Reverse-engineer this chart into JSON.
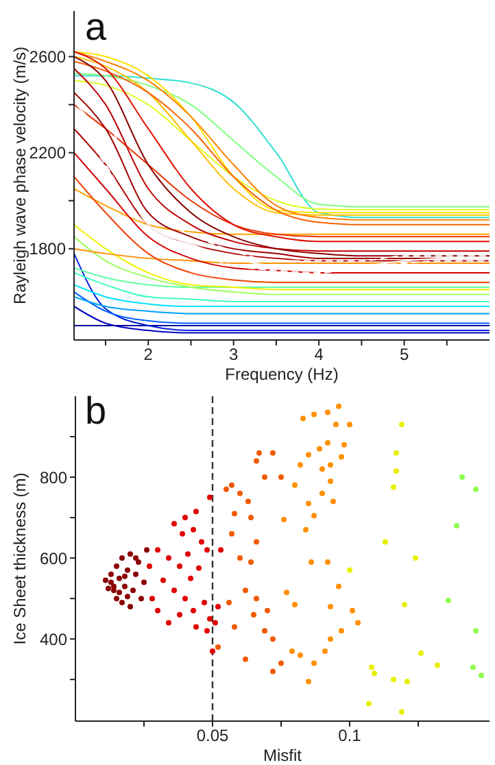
{
  "chart_data": [
    {
      "type": "line",
      "xlabel": "Frequency (Hz)",
      "ylabel": "Rayleigh wave phase velocity (m/s)",
      "annotations": [
        "a"
      ],
      "marker": "none",
      "xlim": [
        1.13,
        6
      ],
      "ylim": [
        1420,
        2790
      ],
      "xticks": [
        {
          "value": 1.5,
          "label": null
        },
        2,
        {
          "value": 2.5,
          "label": null
        },
        3,
        {
          "value": 3.5,
          "label": null
        },
        4,
        {
          "value": 4.5,
          "label": null
        },
        5,
        {
          "value": 5.5,
          "label": null
        }
      ],
      "yticks": [
        1800,
        {
          "value": 2000,
          "label": null
        },
        2200,
        {
          "value": 2400,
          "label": null
        },
        2600
      ],
      "x": [
        1.13,
        1.5,
        2,
        2.5,
        3,
        3.5,
        4,
        4.5,
        5,
        5.5,
        6
      ],
      "series": [
        {
          "color": "#0000a0",
          "values": [
            1480,
            1480,
            1480,
            1480,
            1480,
            1480,
            1480,
            1480,
            1480,
            1480,
            1480
          ]
        },
        {
          "color": "#0000c0",
          "values": [
            1560,
            1490,
            1460,
            1450,
            1450,
            1450,
            1450,
            1450,
            1450,
            1450,
            1450
          ]
        },
        {
          "color": "#0020e0",
          "values": [
            1780,
            1550,
            1480,
            1460,
            1460,
            1460,
            1460,
            1460,
            1460,
            1460,
            1460
          ]
        },
        {
          "color": "#0060ff",
          "values": [
            1620,
            1540,
            1500,
            1490,
            1490,
            1490,
            1490,
            1490,
            1490,
            1490,
            1490
          ]
        },
        {
          "color": "#00a0ff",
          "values": [
            1600,
            1560,
            1540,
            1530,
            1530,
            1530,
            1530,
            1530,
            1530,
            1530,
            1530
          ]
        },
        {
          "color": "#00e0ff",
          "values": [
            1650,
            1600,
            1570,
            1560,
            1560,
            1560,
            1560,
            1560,
            1560,
            1560,
            1560
          ]
        },
        {
          "color": "#40ffc0",
          "values": [
            1700,
            1650,
            1600,
            1590,
            1580,
            1580,
            1580,
            1580,
            1580,
            1580,
            1580
          ]
        },
        {
          "color": "#60ffa0",
          "values": [
            1720,
            1680,
            1650,
            1640,
            1640,
            1640,
            1640,
            1640,
            1640,
            1640,
            1640
          ]
        },
        {
          "color": "#a0ff60",
          "values": [
            1850,
            1750,
            1680,
            1640,
            1620,
            1610,
            1610,
            1610,
            1610,
            1610,
            1610
          ]
        },
        {
          "color": "#f0f000",
          "values": [
            1900,
            1800,
            1700,
            1650,
            1640,
            1630,
            1630,
            1630,
            1630,
            1630,
            1630
          ]
        },
        {
          "color": "#30e0d0",
          "values": [
            2520,
            2520,
            2510,
            2490,
            2410,
            2200,
            1950,
            1930,
            1930,
            1930,
            1930
          ]
        },
        {
          "color": "#80ff80",
          "values": [
            2530,
            2520,
            2480,
            2400,
            2250,
            2100,
            1985,
            1975,
            1975,
            1975,
            1975
          ]
        },
        {
          "color": "#e0ff20",
          "values": [
            2500,
            2480,
            2400,
            2250,
            2100,
            2000,
            1965,
            1962,
            1962,
            1962,
            1962
          ]
        },
        {
          "color": "#ffe000",
          "values": [
            2620,
            2600,
            2520,
            2350,
            2100,
            1960,
            1950,
            1950,
            1950,
            1950,
            1950
          ]
        },
        {
          "color": "#ffc000",
          "values": [
            2600,
            2560,
            2450,
            2250,
            2050,
            1950,
            1940,
            1940,
            1940,
            1940,
            1940
          ]
        },
        {
          "color": "#ffa000",
          "values": [
            2050,
            1980,
            1900,
            1870,
            1860,
            1860,
            1860,
            1860,
            1860,
            1860,
            1860
          ]
        },
        {
          "color": "#ff9000",
          "values": [
            1800,
            1780,
            1760,
            1750,
            1740,
            1740,
            1740,
            1740,
            1740,
            1740,
            1740
          ]
        },
        {
          "color": "#ff8000",
          "values": [
            2620,
            2580,
            2500,
            2350,
            2150,
            1980,
            1930,
            1920,
            1920,
            1920,
            1920
          ]
        },
        {
          "color": "#f86000",
          "values": [
            2580,
            2540,
            2450,
            2300,
            2100,
            1960,
            1910,
            1900,
            1900,
            1900,
            1900
          ]
        },
        {
          "color": "#f04000",
          "values": [
            2100,
            1950,
            1780,
            1700,
            1670,
            1660,
            1660,
            1660,
            1660,
            1660,
            1660
          ]
        },
        {
          "color": "#e83000",
          "values": [
            2400,
            2300,
            2150,
            2000,
            1900,
            1860,
            1850,
            1850,
            1850,
            1850,
            1850
          ]
        },
        {
          "color": "#e01000",
          "values": [
            2620,
            2550,
            2300,
            2050,
            1900,
            1850,
            1830,
            1830,
            1830,
            1830,
            1830
          ]
        },
        {
          "color": "#d40000",
          "values": [
            2200,
            2050,
            1850,
            1760,
            1720,
            1710,
            1700,
            1700,
            1700,
            1700,
            1700
          ]
        },
        {
          "color": "#c00000",
          "values": [
            2550,
            2400,
            2050,
            1900,
            1830,
            1800,
            1790,
            1790,
            1790,
            1790,
            1790
          ]
        },
        {
          "color": "#b00000",
          "values": [
            2300,
            2150,
            1900,
            1820,
            1780,
            1760,
            1750,
            1750,
            1750,
            1750,
            1750
          ]
        },
        {
          "color": "#a00000",
          "values": [
            2450,
            2300,
            1950,
            1850,
            1800,
            1780,
            1760,
            1760,
            1760,
            1760,
            1760
          ]
        },
        {
          "color": "#8b0000",
          "values": [
            2600,
            2500,
            2150,
            1950,
            1850,
            1800,
            1780,
            1770,
            1770,
            1770,
            1770
          ]
        },
        {
          "color": "#ffffff",
          "line_style": "solid",
          "values": [
            2410,
            2250,
            1900,
            1820,
            1760,
            1730,
            1730,
            1730,
            1750,
            1760,
            1760
          ]
        },
        {
          "color": "#ffffff",
          "line_style": "dashed",
          "values": [
            2500,
            2350,
            1960,
            1860,
            1790,
            1750,
            1750,
            1750,
            1770,
            1770,
            1770
          ]
        },
        {
          "color": "#ffffff",
          "line_style": "dashed",
          "values": [
            2330,
            2150,
            1860,
            1790,
            1730,
            1710,
            1700,
            1720,
            1740,
            1750,
            1750
          ]
        }
      ]
    },
    {
      "type": "scatter",
      "xlabel": "Misfit",
      "ylabel": "Ice Sheet thickness (m)",
      "annotations": [
        "b"
      ],
      "marker": "circle",
      "xlim": [
        0,
        0.151
      ],
      "ylim": [
        197,
        1000
      ],
      "xticks": [
        {
          "value": 0.025,
          "label": null
        },
        0.05,
        {
          "value": 0.075,
          "label": null
        },
        0.1,
        {
          "value": 0.125,
          "label": null
        }
      ],
      "yticks": [
        {
          "value": 300,
          "label": null
        },
        400,
        {
          "value": 500,
          "label": null
        },
        600,
        {
          "value": 700,
          "label": null
        },
        800,
        {
          "value": 900,
          "label": null
        }
      ],
      "ref_lines": [
        {
          "axis": "x",
          "value": 0.05,
          "color": "#333333",
          "line_style": "dashed"
        }
      ],
      "series": [
        {
          "color": "#90ff50",
          "x": [
            0.141,
            0.146,
            0.139,
            0.136,
            0.146,
            0.145,
            0.148
          ],
          "values": [
            800,
            770,
            680,
            495,
            420,
            330,
            310
          ]
        },
        {
          "color": "#e8f000",
          "x": [
            0.119,
            0.117,
            0.117,
            0.116,
            0.124,
            0.113,
            0.12,
            0.126,
            0.132,
            0.119,
            0.121,
            0.116,
            0.108,
            0.107,
            0.109,
            0.1
          ],
          "values": [
            930,
            860,
            815,
            775,
            600,
            640,
            485,
            365,
            335,
            220,
            295,
            300,
            330,
            240,
            315,
            570
          ]
        },
        {
          "color": "#ff9000",
          "x": [
            0.096,
            0.092,
            0.087,
            0.083,
            0.1,
            0.095,
            0.098,
            0.092,
            0.089,
            0.097,
            0.093,
            0.09,
            0.085,
            0.082,
            0.093,
            0.09,
            0.08,
            0.094,
            0.085,
            0.087,
            0.076,
            0.084,
            0.086,
            0.092,
            0.096,
            0.093,
            0.097,
            0.101,
            0.103,
            0.093,
            0.087,
            0.085,
            0.079,
            0.082,
            0.091,
            0.077,
            0.08
          ],
          "values": [
            975,
            960,
            955,
            945,
            930,
            930,
            880,
            885,
            870,
            850,
            830,
            820,
            855,
            830,
            790,
            760,
            780,
            740,
            735,
            705,
            695,
            670,
            590,
            590,
            530,
            480,
            420,
            470,
            440,
            400,
            340,
            295,
            370,
            360,
            370,
            515,
            485
          ]
        },
        {
          "color": "#f05a00",
          "x": [
            0.067,
            0.066,
            0.072,
            0.075,
            0.069,
            0.055,
            0.06,
            0.057,
            0.063,
            0.064,
            0.058,
            0.066,
            0.06,
            0.064,
            0.062,
            0.066,
            0.07,
            0.072,
            0.069,
            0.075,
            0.072,
            0.062,
            0.056,
            0.058,
            0.052,
            0.057,
            0.065
          ],
          "values": [
            860,
            840,
            860,
            800,
            800,
            770,
            760,
            780,
            740,
            700,
            710,
            640,
            600,
            590,
            520,
            500,
            470,
            400,
            420,
            340,
            320,
            350,
            490,
            430,
            380,
            660,
            460
          ]
        },
        {
          "color": "#e00000",
          "x": [
            0.044,
            0.04,
            0.036,
            0.043,
            0.039,
            0.046,
            0.048,
            0.041,
            0.034,
            0.038,
            0.045,
            0.042,
            0.032,
            0.036,
            0.04,
            0.047,
            0.043,
            0.038,
            0.034,
            0.044,
            0.049,
            0.048,
            0.03,
            0.028,
            0.03,
            0.027,
            0.052,
            0.051,
            0.05,
            0.053,
            0.049
          ],
          "values": [
            715,
            700,
            685,
            670,
            660,
            640,
            620,
            610,
            600,
            580,
            575,
            550,
            545,
            520,
            500,
            490,
            470,
            460,
            440,
            430,
            450,
            420,
            470,
            500,
            620,
            580,
            480,
            440,
            370,
            620,
            750
          ]
        },
        {
          "color": "#8b0000",
          "x": [
            0.012,
            0.013,
            0.014,
            0.015,
            0.015,
            0.016,
            0.017,
            0.017,
            0.018,
            0.019,
            0.02,
            0.02,
            0.021,
            0.022,
            0.023,
            0.024,
            0.025,
            0.026,
            0.013,
            0.014,
            0.016,
            0.018,
            0.011,
            0.019,
            0.022
          ],
          "values": [
            525,
            560,
            520,
            580,
            500,
            550,
            600,
            490,
            530,
            570,
            610,
            480,
            520,
            560,
            590,
            500,
            540,
            620,
            540,
            530,
            515,
            555,
            545,
            505,
            600
          ]
        }
      ]
    }
  ]
}
